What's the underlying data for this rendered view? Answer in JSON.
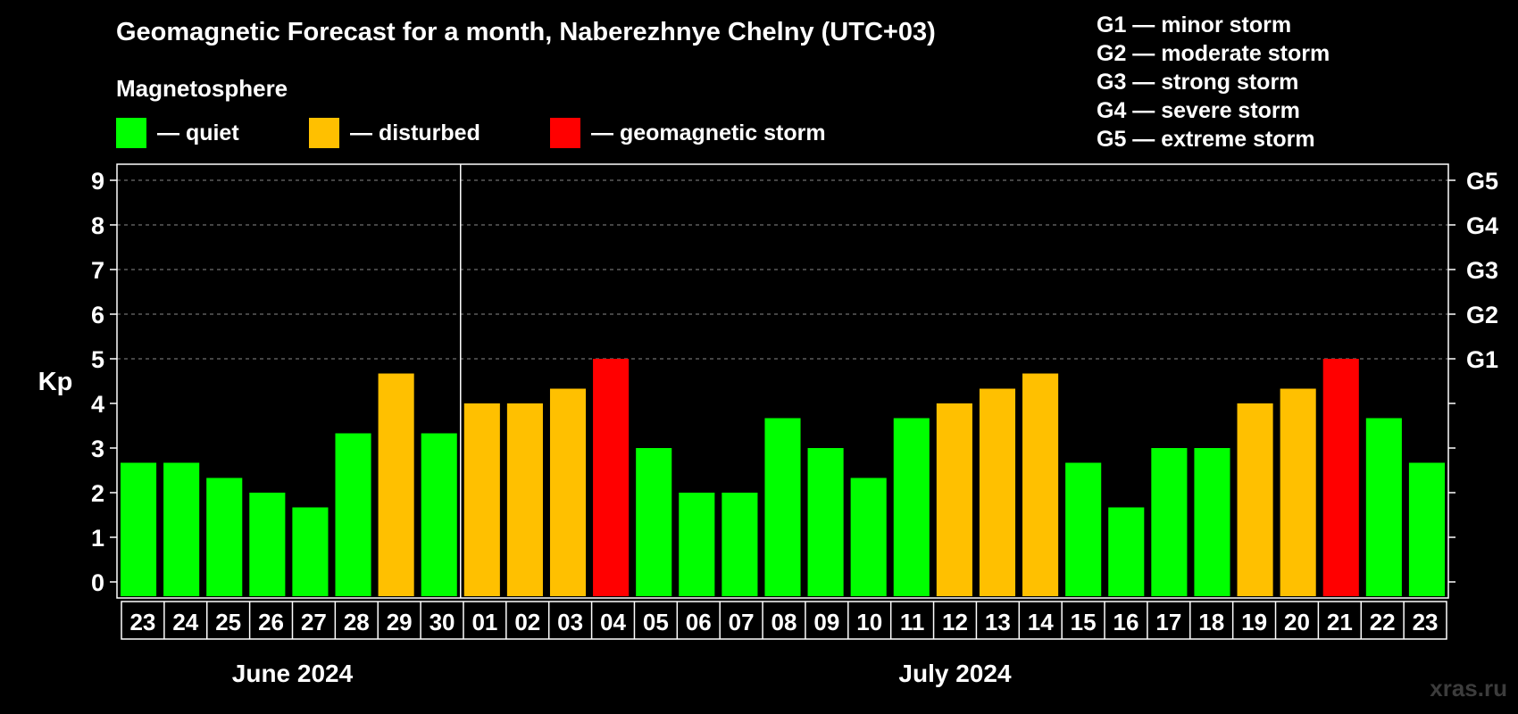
{
  "header": {
    "title": "Geomagnetic Forecast for a month, Naberezhnye Chelny (UTC+03)",
    "subtitle": "Magnetosphere",
    "legend": [
      {
        "label": "— quiet",
        "color": "#00ff00"
      },
      {
        "label": "— disturbed",
        "color": "#ffc000"
      },
      {
        "label": "— geomagnetic storm",
        "color": "#ff0000"
      }
    ]
  },
  "g_scale": [
    "G1 — minor storm",
    "G2 — moderate storm",
    "G3 — strong storm",
    "G4 — severe storm",
    "G5 — extreme storm"
  ],
  "watermark": "xras.ru",
  "chart_data": {
    "type": "bar",
    "title": "Geomagnetic Forecast for a month, Naberezhnye Chelny (UTC+03)",
    "ylabel": "Kp",
    "ylim": [
      0,
      9
    ],
    "yticks": [
      "0",
      "1",
      "2",
      "3",
      "4",
      "5",
      "6",
      "7",
      "8",
      "9"
    ],
    "right_ticks": [
      {
        "kp": 5,
        "label": "G1"
      },
      {
        "kp": 6,
        "label": "G2"
      },
      {
        "kp": 7,
        "label": "G3"
      },
      {
        "kp": 8,
        "label": "G4"
      },
      {
        "kp": 9,
        "label": "G5"
      }
    ],
    "categories": [
      "23",
      "24",
      "25",
      "26",
      "27",
      "28",
      "29",
      "30",
      "01",
      "02",
      "03",
      "04",
      "05",
      "06",
      "07",
      "08",
      "09",
      "10",
      "11",
      "12",
      "13",
      "14",
      "15",
      "16",
      "17",
      "18",
      "19",
      "20",
      "21",
      "22",
      "23"
    ],
    "values": [
      2.67,
      2.67,
      2.33,
      2.0,
      1.67,
      3.33,
      4.67,
      3.33,
      4.0,
      4.0,
      4.33,
      5.0,
      3.0,
      2.0,
      2.0,
      3.67,
      3.0,
      2.33,
      3.67,
      4.0,
      4.33,
      4.67,
      2.67,
      1.67,
      3.0,
      3.0,
      4.0,
      4.33,
      5.0,
      3.67,
      2.67
    ],
    "status": [
      "quiet",
      "quiet",
      "quiet",
      "quiet",
      "quiet",
      "quiet",
      "disturbed",
      "quiet",
      "disturbed",
      "disturbed",
      "disturbed",
      "storm",
      "quiet",
      "quiet",
      "quiet",
      "quiet",
      "quiet",
      "quiet",
      "quiet",
      "disturbed",
      "disturbed",
      "disturbed",
      "quiet",
      "quiet",
      "quiet",
      "quiet",
      "disturbed",
      "disturbed",
      "storm",
      "quiet",
      "quiet"
    ],
    "status_colors": {
      "quiet": "#00ff00",
      "disturbed": "#ffc000",
      "storm": "#ff0000"
    },
    "months": [
      {
        "label": "June 2024",
        "start": 0,
        "end": 7
      },
      {
        "label": "July 2024",
        "start": 8,
        "end": 30
      }
    ],
    "grid": true
  }
}
